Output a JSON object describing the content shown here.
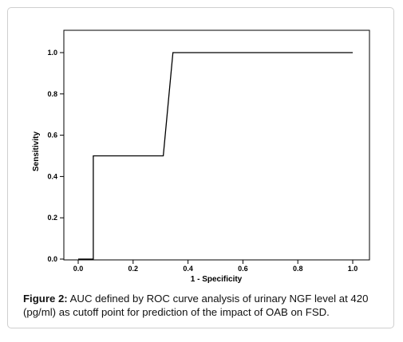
{
  "caption": {
    "label": "Figure 2:",
    "text": " AUC defined by ROC curve analysis of urinary NGF level at 420 (pg/ml) as cutoff point for prediction of the impact of OAB on FSD."
  },
  "chart_data": {
    "type": "line",
    "title": "",
    "xlabel": "1 - Specificity",
    "ylabel": "Sensitivity",
    "xlim": [
      0.0,
      1.0
    ],
    "ylim": [
      0.0,
      1.0
    ],
    "xticks": [
      "0.0",
      "0.2",
      "0.4",
      "0.6",
      "0.8",
      "1.0"
    ],
    "yticks": [
      "0.0",
      "0.2",
      "0.4",
      "0.6",
      "0.8",
      "1.0"
    ],
    "grid": false,
    "series": [
      {
        "color": "#000000",
        "x": [
          0.0,
          0.055,
          0.055,
          0.31,
          0.345,
          1.0
        ],
        "y": [
          0.0,
          0.0,
          0.5,
          0.5,
          1.0,
          1.0
        ]
      }
    ]
  }
}
